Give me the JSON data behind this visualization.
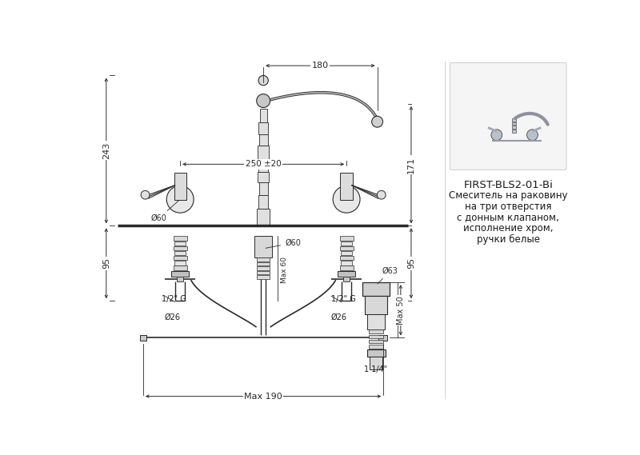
{
  "bg_color": "#ffffff",
  "line_color": "#2a2a2a",
  "dim_color": "#2a2a2a",
  "text_color": "#1a1a1a",
  "title_text": "FIRST-BLS2-01-Bi",
  "subtitle_lines": [
    "Смеситель на раковину",
    "на три отверстия",
    "с донным клапаном,",
    "исполнение хром,",
    "ручки белые"
  ],
  "dim_180": "180",
  "dim_250": "250 ±20",
  "dim_243": "243",
  "dim_171": "171",
  "dim_95L": "95",
  "dim_95R": "95",
  "dim_max190": "Max 190",
  "dim_max60": "Max 60",
  "dim_d60_L": "Ø60",
  "dim_d60_C": "Ø60",
  "dim_d63": "Ø63",
  "dim_max50": "Max 50",
  "dim_half_g_L": "1/2\" G",
  "dim_half_g_R": "1/2\" G",
  "dim_d26_L": "Ø26",
  "dim_d26_R": "Ø26",
  "dim_11_4": "1 1/4\""
}
